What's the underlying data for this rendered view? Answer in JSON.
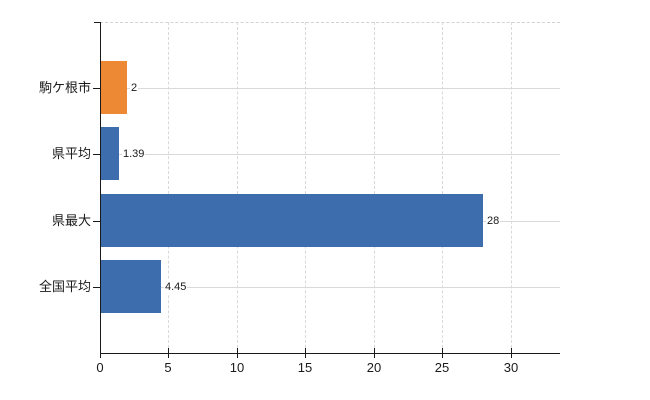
{
  "chart_data": {
    "type": "bar",
    "orientation": "horizontal",
    "categories": [
      "駒ケ根市",
      "県平均",
      "県最大",
      "全国平均"
    ],
    "values": [
      2,
      1.39,
      28,
      4.45
    ],
    "value_labels": [
      "2",
      "1.39",
      "28",
      "4.45"
    ],
    "bar_colors": [
      "#ed8934",
      "#3d6dad",
      "#3d6dad",
      "#3d6dad"
    ],
    "xticks": [
      0,
      5,
      10,
      15,
      20,
      25,
      30
    ],
    "xtick_labels": [
      "0",
      "5",
      "10",
      "15",
      "20",
      "25",
      "30"
    ],
    "xlim": [
      0,
      33.6
    ],
    "grid": true,
    "legend_position": "none",
    "colors": {
      "axis": "#1a1a1a",
      "grid_vertical": "#d9d9d9",
      "grid_horizontal": "#d9d9d9",
      "top_border": "#d2d2d2",
      "background": "#ffffff",
      "blue_series": "#3d6dad",
      "orange_series": "#ed8934"
    }
  }
}
